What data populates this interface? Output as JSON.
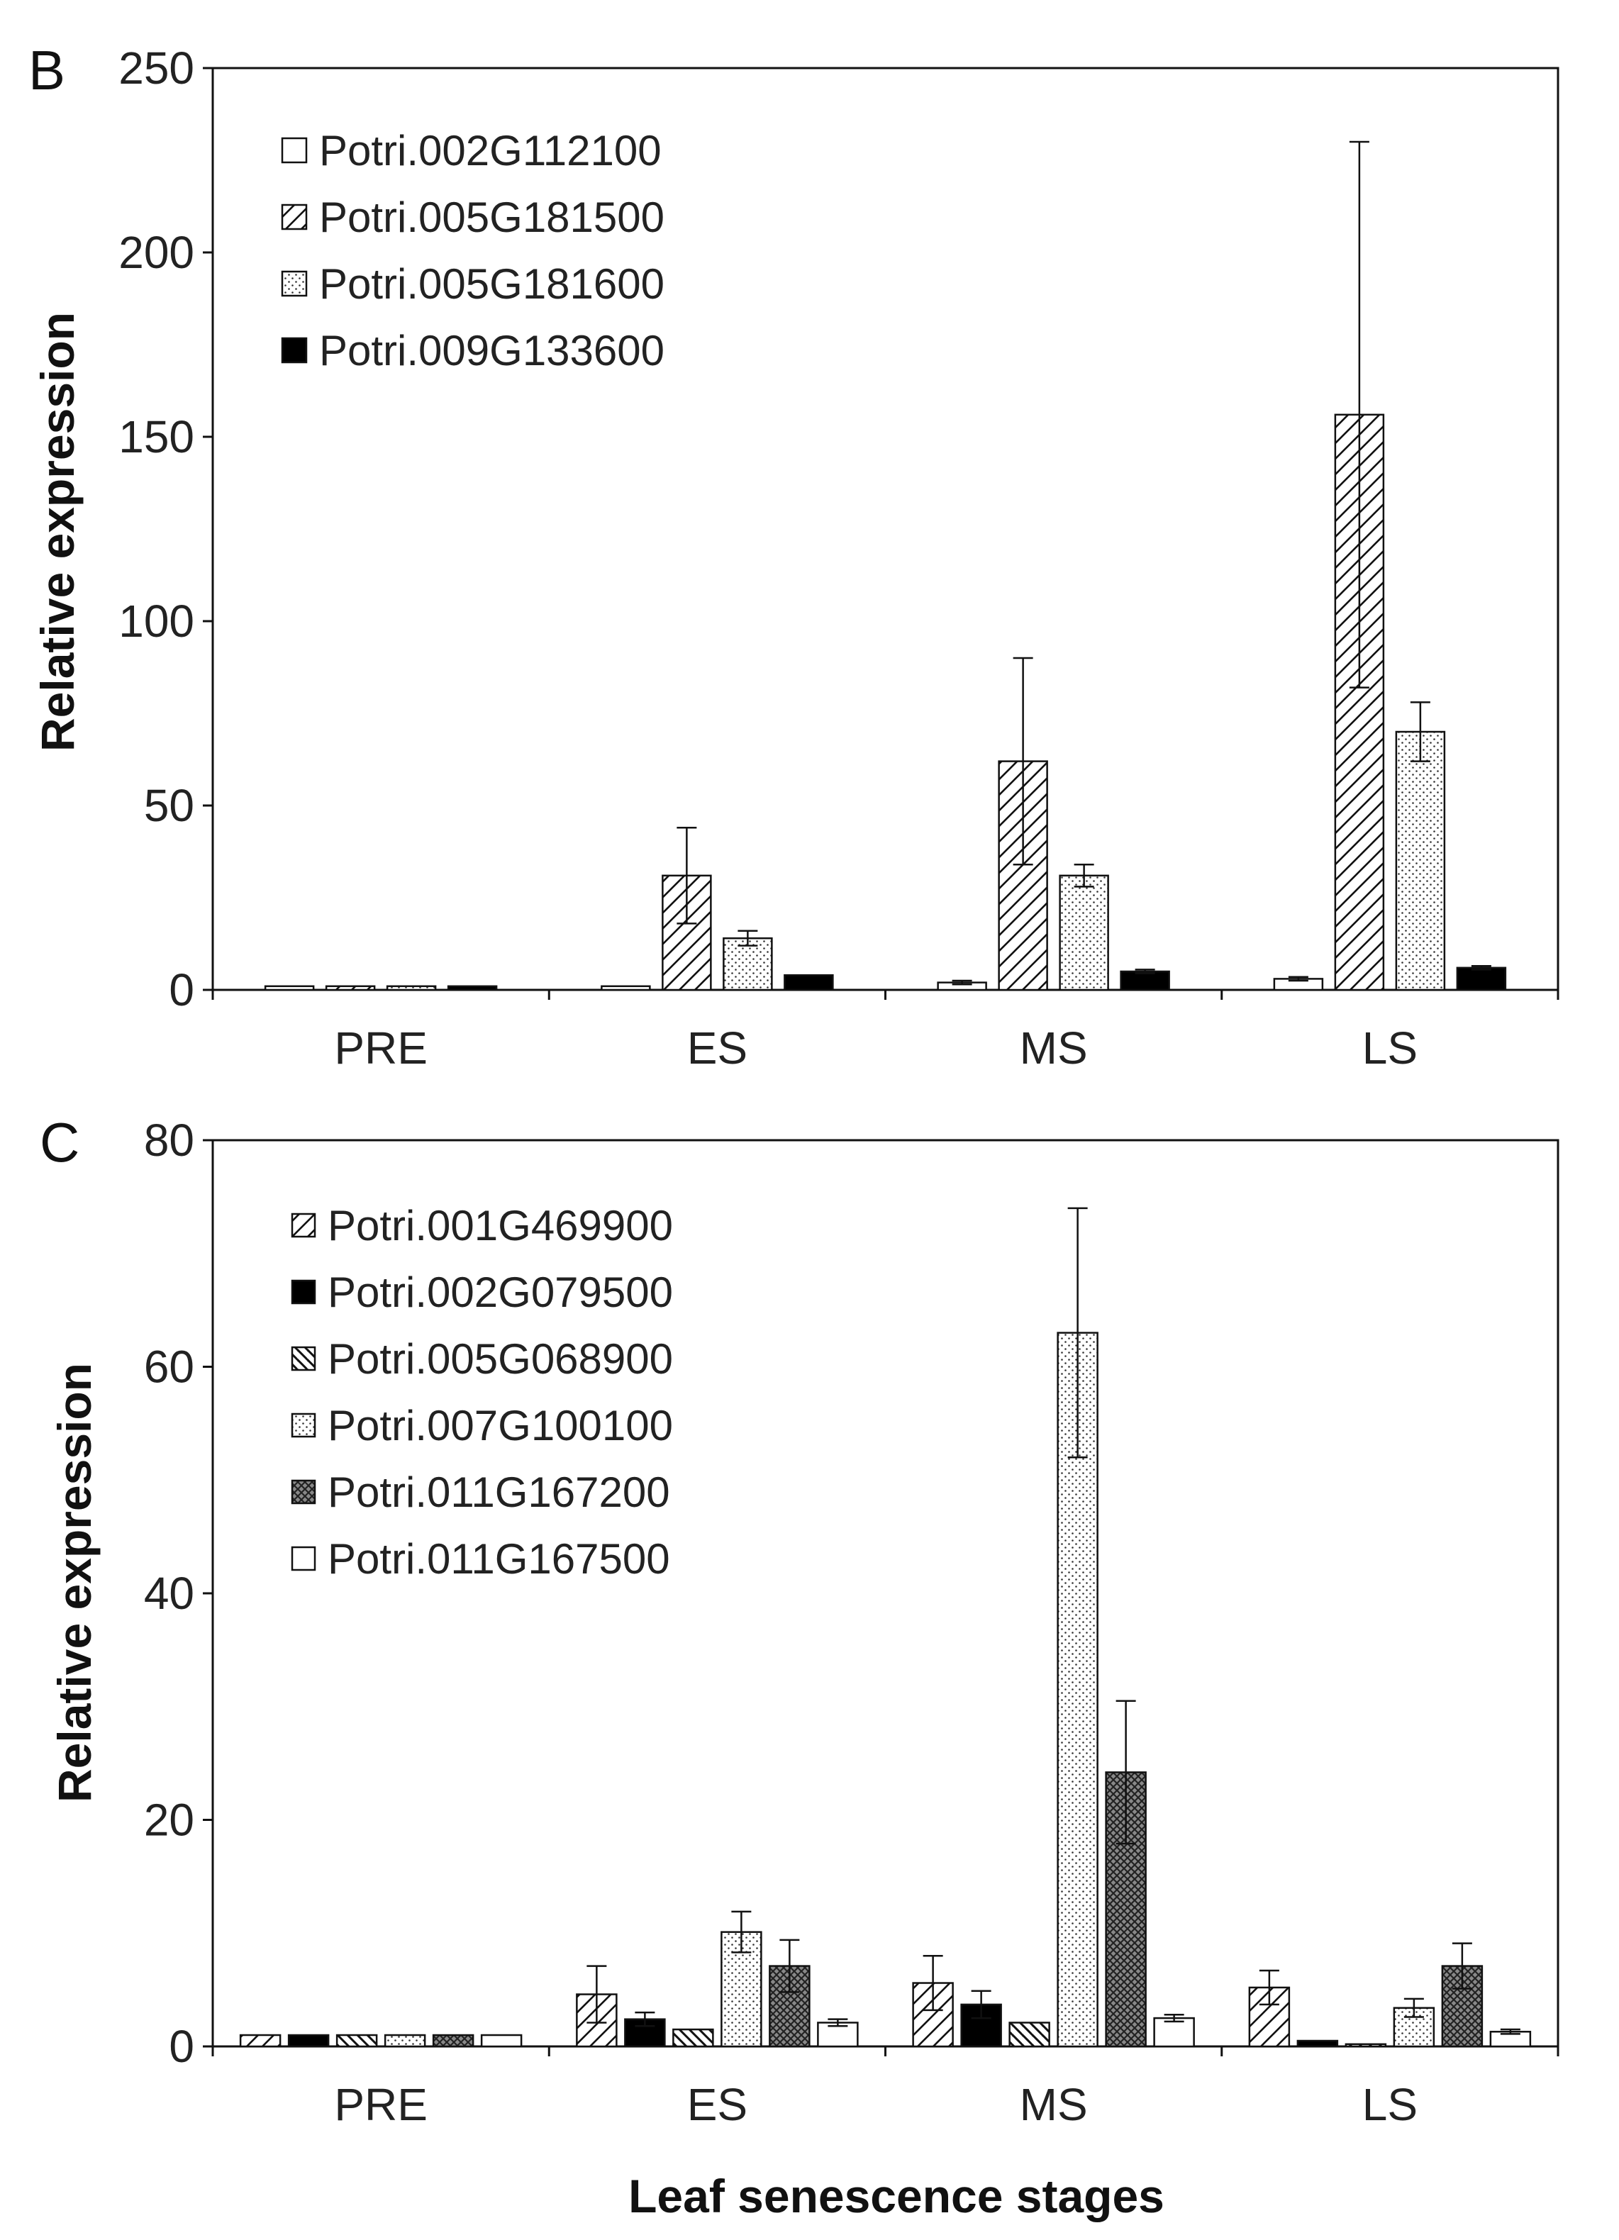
{
  "shared": {
    "xlabel": "Leaf senescence stages",
    "categories": [
      "PRE",
      "ES",
      "MS",
      "LS"
    ]
  },
  "chart_data": [
    {
      "panel": "B",
      "type": "bar",
      "ylabel": "Relative expression",
      "ylim": [
        0,
        250
      ],
      "yticks": [
        0,
        50,
        100,
        150,
        200,
        250
      ],
      "legend_position": "top-left",
      "series": [
        {
          "name": "Potri.002G112100",
          "pattern": "white",
          "values": [
            1,
            1,
            2,
            3
          ],
          "errors": [
            0,
            0,
            0.5,
            0.5
          ]
        },
        {
          "name": "Potri.005G181500",
          "pattern": "diag-wide",
          "values": [
            1,
            31,
            62,
            156
          ],
          "errors": [
            0,
            13,
            28,
            74
          ]
        },
        {
          "name": "Potri.005G181600",
          "pattern": "dots",
          "values": [
            1,
            14,
            31,
            70
          ],
          "errors": [
            0,
            2,
            3,
            8
          ]
        },
        {
          "name": "Potri.009G133600",
          "pattern": "black",
          "values": [
            1,
            4,
            5,
            6
          ],
          "errors": [
            0,
            0,
            0.5,
            0.5
          ]
        }
      ]
    },
    {
      "panel": "C",
      "type": "bar",
      "ylabel": "Relative expression",
      "ylim": [
        0,
        80
      ],
      "yticks": [
        0,
        20,
        40,
        60,
        80
      ],
      "legend_position": "top-left",
      "series": [
        {
          "name": "Potri.001G469900",
          "pattern": "diag-wide",
          "values": [
            1,
            4.6,
            5.6,
            5.2
          ],
          "errors": [
            0,
            2.5,
            2.4,
            1.5
          ]
        },
        {
          "name": "Potri.002G079500",
          "pattern": "black",
          "values": [
            1,
            2.4,
            3.7,
            0.5
          ],
          "errors": [
            0,
            0.6,
            1.2,
            0
          ]
        },
        {
          "name": "Potri.005G068900",
          "pattern": "diag-dense",
          "values": [
            1,
            1.5,
            2.1,
            0.2
          ],
          "errors": [
            0,
            0,
            0,
            0
          ]
        },
        {
          "name": "Potri.007G100100",
          "pattern": "dots",
          "values": [
            1,
            10.1,
            63,
            3.4
          ],
          "errors": [
            0,
            1.8,
            11,
            0.8
          ]
        },
        {
          "name": "Potri.011G167200",
          "pattern": "crosshatch",
          "values": [
            1,
            7.1,
            24.2,
            7.1
          ],
          "errors": [
            0,
            2.3,
            6.3,
            2
          ]
        },
        {
          "name": "Potri.011G167500",
          "pattern": "white",
          "values": [
            1,
            2.1,
            2.5,
            1.3
          ],
          "errors": [
            0,
            0.3,
            0.3,
            0.2
          ]
        }
      ]
    }
  ]
}
